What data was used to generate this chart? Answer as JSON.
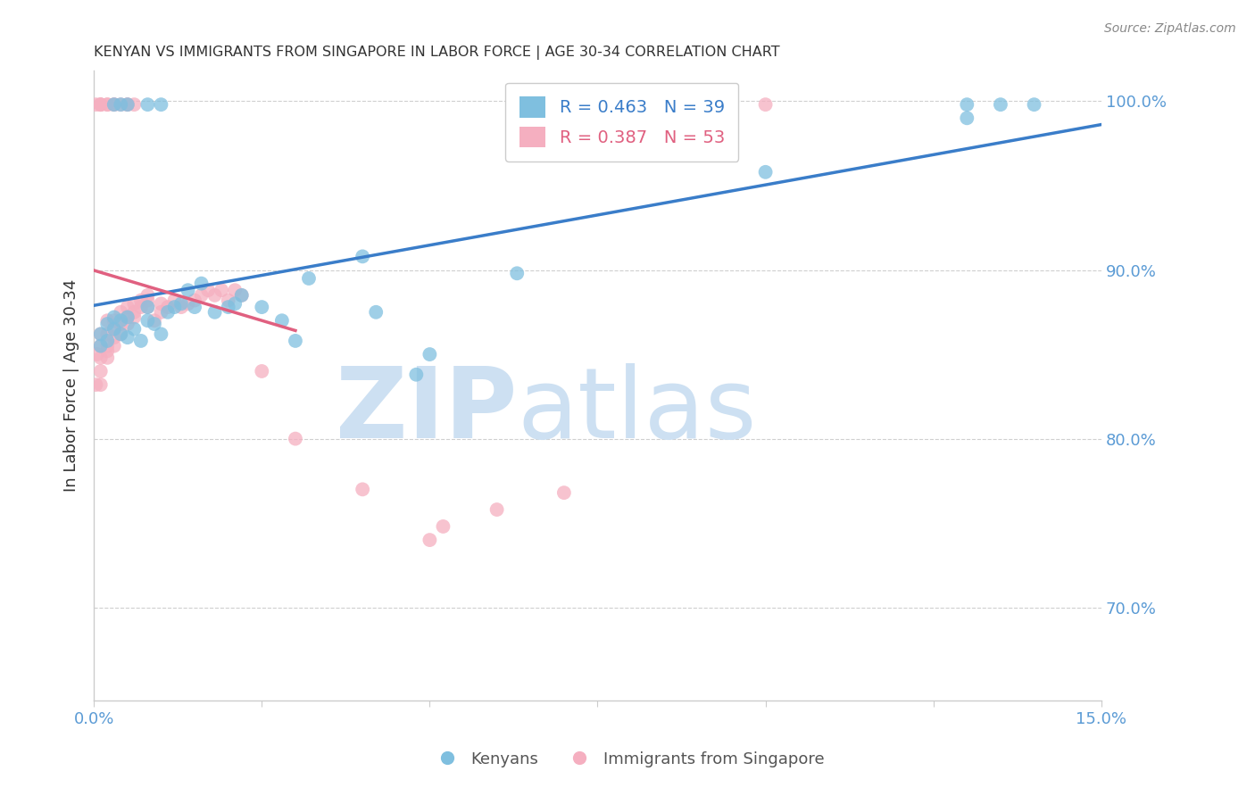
{
  "title": "KENYAN VS IMMIGRANTS FROM SINGAPORE IN LABOR FORCE | AGE 30-34 CORRELATION CHART",
  "source": "Source: ZipAtlas.com",
  "ylabel": "In Labor Force | Age 30-34",
  "yticks": [
    "70.0%",
    "80.0%",
    "90.0%",
    "100.0%"
  ],
  "ytick_values": [
    0.7,
    0.8,
    0.9,
    1.0
  ],
  "xlim": [
    0.0,
    0.15
  ],
  "ylim": [
    0.645,
    1.018
  ],
  "blue_color": "#7fbfdf",
  "pink_color": "#f5afc0",
  "blue_line_color": "#3a7dc9",
  "pink_line_color": "#e06080",
  "legend_blue_r": "R = 0.463",
  "legend_blue_n": "N = 39",
  "legend_pink_r": "R = 0.387",
  "legend_pink_n": "N = 53",
  "watermark_zip": "ZIP",
  "watermark_atlas": "atlas",
  "watermark_color": "#cde0f2",
  "blue_x": [
    0.001,
    0.001,
    0.002,
    0.002,
    0.003,
    0.003,
    0.004,
    0.004,
    0.005,
    0.005,
    0.006,
    0.007,
    0.008,
    0.008,
    0.009,
    0.01,
    0.011,
    0.012,
    0.013,
    0.014,
    0.015,
    0.016,
    0.018,
    0.02,
    0.021,
    0.022,
    0.025,
    0.028,
    0.03,
    0.032,
    0.04,
    0.042,
    0.048,
    0.05,
    0.063,
    0.1,
    0.13,
    0.135,
    0.14
  ],
  "blue_y": [
    0.855,
    0.862,
    0.858,
    0.868,
    0.865,
    0.872,
    0.862,
    0.87,
    0.86,
    0.872,
    0.865,
    0.858,
    0.87,
    0.878,
    0.868,
    0.862,
    0.875,
    0.878,
    0.88,
    0.888,
    0.878,
    0.892,
    0.875,
    0.878,
    0.88,
    0.885,
    0.878,
    0.87,
    0.858,
    0.895,
    0.908,
    0.875,
    0.838,
    0.85,
    0.898,
    0.958,
    0.99,
    0.998,
    0.998
  ],
  "pink_x": [
    0.0003,
    0.0005,
    0.001,
    0.001,
    0.001,
    0.001,
    0.001,
    0.002,
    0.002,
    0.002,
    0.002,
    0.002,
    0.003,
    0.003,
    0.003,
    0.003,
    0.004,
    0.004,
    0.004,
    0.005,
    0.005,
    0.005,
    0.006,
    0.006,
    0.006,
    0.007,
    0.007,
    0.008,
    0.008,
    0.008,
    0.009,
    0.01,
    0.01,
    0.011,
    0.012,
    0.013,
    0.014,
    0.015,
    0.016,
    0.017,
    0.018,
    0.019,
    0.02,
    0.021,
    0.022,
    0.025,
    0.03,
    0.04,
    0.05,
    0.052,
    0.06,
    0.07,
    0.1
  ],
  "pink_y": [
    0.832,
    0.85,
    0.832,
    0.84,
    0.848,
    0.855,
    0.862,
    0.848,
    0.852,
    0.855,
    0.862,
    0.87,
    0.855,
    0.86,
    0.865,
    0.87,
    0.862,
    0.868,
    0.875,
    0.868,
    0.872,
    0.878,
    0.872,
    0.875,
    0.88,
    0.878,
    0.882,
    0.878,
    0.882,
    0.885,
    0.87,
    0.875,
    0.88,
    0.878,
    0.882,
    0.878,
    0.88,
    0.882,
    0.885,
    0.888,
    0.885,
    0.888,
    0.882,
    0.888,
    0.885,
    0.84,
    0.8,
    0.77,
    0.74,
    0.748,
    0.758,
    0.768,
    0.998
  ],
  "pink_top_x": [
    0.0003,
    0.001,
    0.001,
    0.001,
    0.002,
    0.002,
    0.003,
    0.003,
    0.004,
    0.005,
    0.005,
    0.006
  ],
  "pink_top_y": [
    0.998,
    0.998,
    0.998,
    0.998,
    0.998,
    0.998,
    0.998,
    0.998,
    0.998,
    0.998,
    0.998,
    0.998
  ],
  "blue_top_x": [
    0.003,
    0.004,
    0.005,
    0.008,
    0.01,
    0.13
  ],
  "blue_top_y": [
    0.998,
    0.998,
    0.998,
    0.998,
    0.998,
    0.998
  ],
  "background_color": "#ffffff",
  "grid_color": "#bbbbbb",
  "axis_color": "#cccccc",
  "tick_label_color": "#5b9bd5",
  "title_color": "#333333",
  "ylabel_color": "#333333"
}
